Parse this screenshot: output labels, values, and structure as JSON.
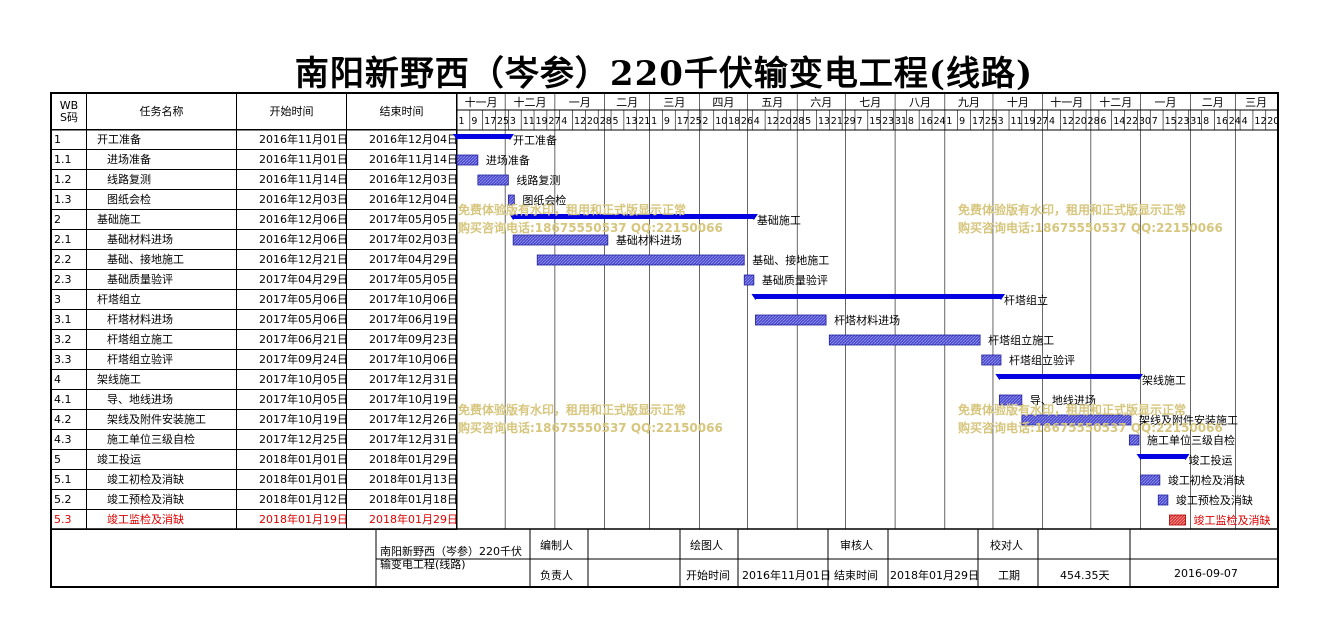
{
  "title": "南阳新野西（岑参）220千伏输变电工程(线路)",
  "headers": {
    "wbs": "WBS码",
    "name": "任务名称",
    "start": "开始时间",
    "end": "结束时间"
  },
  "timeline": {
    "months": [
      "十一月",
      "十二月",
      "一月",
      "二月",
      "三月",
      "四月",
      "五月",
      "六月",
      "七月",
      "八月",
      "九月",
      "十月",
      "十一月",
      "十二月",
      "一月",
      "二月",
      "三月"
    ],
    "days": [
      "1",
      "9",
      "17",
      "25",
      "3",
      "11",
      "19",
      "27",
      "4",
      "12",
      "20",
      "28",
      "5",
      "13",
      "21",
      "1",
      "9",
      "17",
      "25",
      "2",
      "10",
      "18",
      "26",
      "4",
      "12",
      "20",
      "28",
      "5",
      "13",
      "21",
      "29",
      "7",
      "15",
      "23",
      "31",
      "8",
      "16",
      "24",
      "1",
      "9",
      "17",
      "25",
      "3",
      "11",
      "19",
      "27",
      "4",
      "12",
      "20",
      "28",
      "6",
      "14",
      "22",
      "30",
      "7",
      "15",
      "23",
      "31",
      "8",
      "16",
      "24",
      "4",
      "12",
      "20"
    ]
  },
  "tasks": [
    {
      "wbs": "1",
      "name": "开工准备",
      "start": "2016年11月01日",
      "end": "2016年12月04日",
      "indent": 0,
      "summary": true,
      "critical": false
    },
    {
      "wbs": "1.1",
      "name": "进场准备",
      "start": "2016年11月01日",
      "end": "2016年11月14日",
      "indent": 1,
      "summary": false,
      "critical": false
    },
    {
      "wbs": "1.2",
      "name": "线路复测",
      "start": "2016年11月14日",
      "end": "2016年12月03日",
      "indent": 1,
      "summary": false,
      "critical": false
    },
    {
      "wbs": "1.3",
      "name": "图纸会检",
      "start": "2016年12月03日",
      "end": "2016年12月04日",
      "indent": 1,
      "summary": false,
      "critical": false
    },
    {
      "wbs": "2",
      "name": "基础施工",
      "start": "2016年12月06日",
      "end": "2017年05月05日",
      "indent": 0,
      "summary": true,
      "critical": false
    },
    {
      "wbs": "2.1",
      "name": "基础材料进场",
      "start": "2016年12月06日",
      "end": "2017年02月03日",
      "indent": 1,
      "summary": false,
      "critical": false
    },
    {
      "wbs": "2.2",
      "name": "基础、接地施工",
      "start": "2016年12月21日",
      "end": "2017年04月29日",
      "indent": 1,
      "summary": false,
      "critical": false
    },
    {
      "wbs": "2.3",
      "name": "基础质量验评",
      "start": "2017年04月29日",
      "end": "2017年05月05日",
      "indent": 1,
      "summary": false,
      "critical": false
    },
    {
      "wbs": "3",
      "name": "杆塔组立",
      "start": "2017年05月06日",
      "end": "2017年10月06日",
      "indent": 0,
      "summary": true,
      "critical": false
    },
    {
      "wbs": "3.1",
      "name": "杆塔材料进场",
      "start": "2017年05月06日",
      "end": "2017年06月19日",
      "indent": 1,
      "summary": false,
      "critical": false
    },
    {
      "wbs": "3.2",
      "name": "杆塔组立施工",
      "start": "2017年06月21日",
      "end": "2017年09月23日",
      "indent": 1,
      "summary": false,
      "critical": false
    },
    {
      "wbs": "3.3",
      "name": "杆塔组立验评",
      "start": "2017年09月24日",
      "end": "2017年10月06日",
      "indent": 1,
      "summary": false,
      "critical": false
    },
    {
      "wbs": "4",
      "name": "架线施工",
      "start": "2017年10月05日",
      "end": "2017年12月31日",
      "indent": 0,
      "summary": true,
      "critical": false
    },
    {
      "wbs": "4.1",
      "name": "导、地线进场",
      "start": "2017年10月05日",
      "end": "2017年10月19日",
      "indent": 1,
      "summary": false,
      "critical": false
    },
    {
      "wbs": "4.2",
      "name": "架线及附件安装施工",
      "start": "2017年10月19日",
      "end": "2017年12月26日",
      "indent": 1,
      "summary": false,
      "critical": false
    },
    {
      "wbs": "4.3",
      "name": "施工单位三级自检",
      "start": "2017年12月25日",
      "end": "2017年12月31日",
      "indent": 1,
      "summary": false,
      "critical": false
    },
    {
      "wbs": "5",
      "name": "竣工投运",
      "start": "2018年01月01日",
      "end": "2018年01月29日",
      "indent": 0,
      "summary": true,
      "critical": false
    },
    {
      "wbs": "5.1",
      "name": "竣工初检及消缺",
      "start": "2018年01月01日",
      "end": "2018年01月13日",
      "indent": 1,
      "summary": false,
      "critical": false
    },
    {
      "wbs": "5.2",
      "name": "竣工预检及消缺",
      "start": "2018年01月12日",
      "end": "2018年01月18日",
      "indent": 1,
      "summary": false,
      "critical": false
    },
    {
      "wbs": "5.3",
      "name": "竣工监检及消缺",
      "start": "2018年01月19日",
      "end": "2018年01月29日",
      "indent": 1,
      "summary": false,
      "critical": true
    }
  ],
  "chart_data": {
    "type": "gantt",
    "x_axis_start": "2016-11-01",
    "x_axis_end": "2018-03-27",
    "bars": [
      {
        "label": "开工准备",
        "start": "2016-11-01",
        "end": "2016-12-04",
        "summary": true
      },
      {
        "label": "进场准备",
        "start": "2016-11-01",
        "end": "2016-11-14"
      },
      {
        "label": "线路复测",
        "start": "2016-11-14",
        "end": "2016-12-03"
      },
      {
        "label": "图纸会检",
        "start": "2016-12-03",
        "end": "2016-12-04"
      },
      {
        "label": "基础施工",
        "start": "2016-12-06",
        "end": "2017-05-05",
        "summary": true
      },
      {
        "label": "基础材料进场",
        "start": "2016-12-06",
        "end": "2017-02-03"
      },
      {
        "label": "基础、接地施工",
        "start": "2016-12-21",
        "end": "2017-04-29"
      },
      {
        "label": "基础质量验评",
        "start": "2017-04-29",
        "end": "2017-05-05"
      },
      {
        "label": "杆塔组立",
        "start": "2017-05-06",
        "end": "2017-10-06",
        "summary": true
      },
      {
        "label": "杆塔材料进场",
        "start": "2017-05-06",
        "end": "2017-06-19"
      },
      {
        "label": "杆塔组立施工",
        "start": "2017-06-21",
        "end": "2017-09-23"
      },
      {
        "label": "杆塔组立验评",
        "start": "2017-09-24",
        "end": "2017-10-06"
      },
      {
        "label": "架线施工",
        "start": "2017-10-05",
        "end": "2017-12-31",
        "summary": true
      },
      {
        "label": "导、地线进场",
        "start": "2017-10-05",
        "end": "2017-10-19"
      },
      {
        "label": "架线及附件安装施工",
        "start": "2017-10-19",
        "end": "2017-12-26"
      },
      {
        "label": "施工单位三级自检",
        "start": "2017-12-25",
        "end": "2017-12-31"
      },
      {
        "label": "竣工投运",
        "start": "2018-01-01",
        "end": "2018-01-29",
        "summary": true
      },
      {
        "label": "竣工初检及消缺",
        "start": "2018-01-01",
        "end": "2018-01-13"
      },
      {
        "label": "竣工预检及消缺",
        "start": "2018-01-12",
        "end": "2018-01-18"
      },
      {
        "label": "竣工监检及消缺",
        "start": "2018-01-19",
        "end": "2018-01-29",
        "critical": true
      }
    ],
    "colors": {
      "summary": "#0000e0",
      "task": "#3b3bc8",
      "critical": "#e00000"
    }
  },
  "watermark": {
    "line1": "免费体验版有水印，租用和正式版显示正常",
    "line2": "购买咨询电话:18675550537 QQ:22150066"
  },
  "footer": {
    "project": "南阳新野西（岑参）220千伏输变电工程(线路)",
    "editor_label": "编制人",
    "drawer_label": "绘图人",
    "reviewer_label": "审核人",
    "checker_label": "校对人",
    "owner_label": "负责人",
    "start_label": "开始时间",
    "start_value": "2016年11月01日",
    "end_label": "结束时间",
    "end_value": "2018年01月29日",
    "duration_label": "工期",
    "duration_value": "454.35天",
    "date_value": "2016-09-07"
  }
}
